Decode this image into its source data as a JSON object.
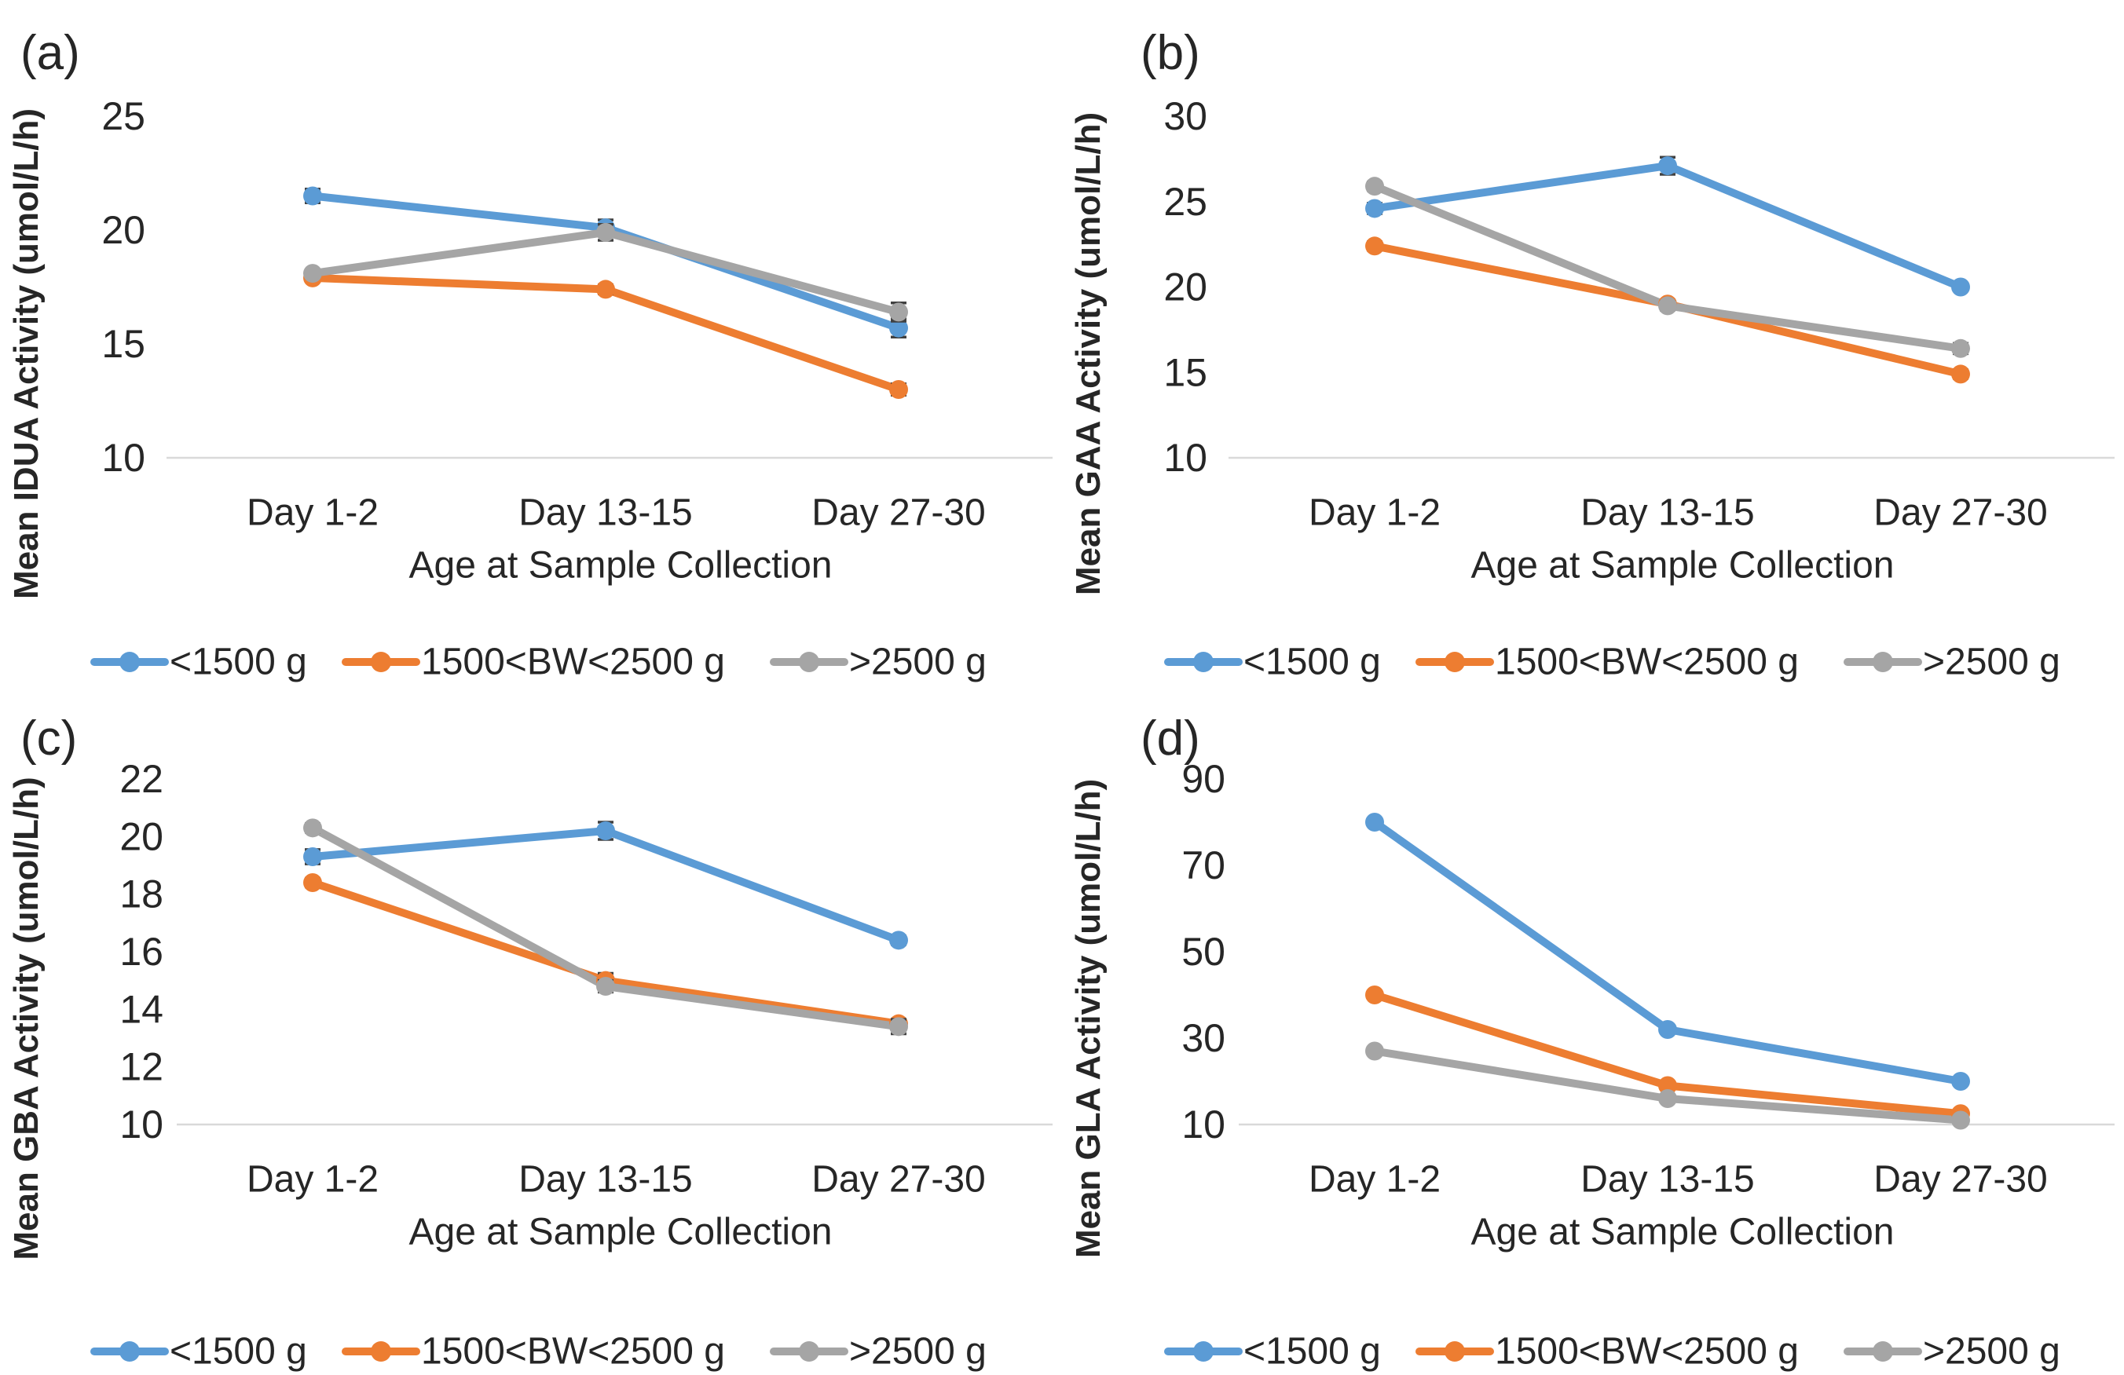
{
  "figure": {
    "background": "#ffffff",
    "x_axis_label": "Age at Sample Collection",
    "categories": [
      "Day 1-2",
      "Day 13-15",
      "Day 27-30"
    ],
    "legend": [
      {
        "label": "<1500 g",
        "color": "#5B9BD5"
      },
      {
        "label": "1500<BW<2500 g",
        "color": "#ED7D31"
      },
      {
        "label": ">2500 g",
        "color": "#A5A5A5"
      }
    ],
    "colors": {
      "series_blue": "#5B9BD5",
      "series_orange": "#ED7D31",
      "series_gray": "#A5A5A5",
      "error_bar": "#404040",
      "gridline": "#D9D9D9",
      "text": "#262626"
    }
  },
  "chart_data": [
    {
      "type": "line",
      "panel_label": "(a)",
      "ylabel": "Mean IDUA Activity (umol/L/h)",
      "xlabel": "Age at Sample Collection",
      "categories": [
        "Day 1-2",
        "Day 13-15",
        "Day 27-30"
      ],
      "yticks": [
        25,
        20,
        15,
        10
      ],
      "ylim": [
        10,
        25
      ],
      "grid": "single horizontal baseline at y=10",
      "legend_position": "bottom",
      "series": [
        {
          "name": "<1500 g",
          "color": "#5B9BD5",
          "values": [
            21.5,
            20.1,
            15.7
          ],
          "errors": [
            0.3,
            0.35,
            0.4
          ]
        },
        {
          "name": "1500<BW<2500 g",
          "color": "#ED7D31",
          "values": [
            17.9,
            17.4,
            13.0
          ],
          "errors": [
            0.15,
            0.2,
            0.25
          ]
        },
        {
          "name": ">2500 g",
          "color": "#A5A5A5",
          "values": [
            18.1,
            19.9,
            16.4
          ],
          "errors": [
            0.15,
            0.35,
            0.4
          ]
        }
      ]
    },
    {
      "type": "line",
      "panel_label": "(b)",
      "ylabel": "Mean GAA Activity (umol/L/h)",
      "xlabel": "Age at Sample Collection",
      "categories": [
        "Day 1-2",
        "Day 13-15",
        "Day 27-30"
      ],
      "yticks": [
        30,
        25,
        20,
        15,
        10
      ],
      "ylim": [
        10,
        30
      ],
      "grid": "single horizontal baseline at y=10",
      "legend_position": "bottom",
      "series": [
        {
          "name": "<1500 g",
          "color": "#5B9BD5",
          "values": [
            24.6,
            27.1,
            20.0
          ],
          "errors": [
            0.3,
            0.5,
            0.2
          ]
        },
        {
          "name": "1500<BW<2500 g",
          "color": "#ED7D31",
          "values": [
            22.4,
            19.0,
            14.9
          ],
          "errors": [
            0.25,
            0.25,
            0.25
          ]
        },
        {
          "name": ">2500 g",
          "color": "#A5A5A5",
          "values": [
            25.9,
            18.9,
            16.4
          ],
          "errors": [
            0.25,
            0.25,
            0.3
          ]
        }
      ]
    },
    {
      "type": "line",
      "panel_label": "(c)",
      "ylabel": "Mean GBA Activity (umol/L/h)",
      "xlabel": "Age at Sample Collection",
      "categories": [
        "Day 1-2",
        "Day 13-15",
        "Day 27-30"
      ],
      "yticks": [
        22,
        20,
        18,
        16,
        14,
        12,
        10
      ],
      "ylim": [
        10,
        22
      ],
      "grid": "single horizontal baseline at y=10",
      "legend_position": "bottom",
      "series": [
        {
          "name": "<1500 g",
          "color": "#5B9BD5",
          "values": [
            19.3,
            20.2,
            16.4
          ],
          "errors": [
            0.25,
            0.3,
            0.15
          ]
        },
        {
          "name": "1500<BW<2500 g",
          "color": "#ED7D31",
          "values": [
            18.4,
            15.0,
            13.5
          ],
          "errors": [
            0.15,
            0.25,
            0.15
          ]
        },
        {
          "name": ">2500 g",
          "color": "#A5A5A5",
          "values": [
            20.3,
            14.8,
            13.4
          ],
          "errors": [
            0.15,
            0.2,
            0.25
          ]
        }
      ]
    },
    {
      "type": "line",
      "panel_label": "(d)",
      "ylabel": "Mean GLA Activity (umol/L/h)",
      "xlabel": "Age at Sample Collection",
      "categories": [
        "Day 1-2",
        "Day 13-15",
        "Day 27-30"
      ],
      "yticks": [
        90,
        70,
        50,
        30,
        10
      ],
      "ylim": [
        10,
        90
      ],
      "grid": "single horizontal baseline at y=10",
      "legend_position": "bottom",
      "series": [
        {
          "name": "<1500 g",
          "color": "#5B9BD5",
          "values": [
            80,
            32,
            20
          ],
          "errors": [
            0.5,
            0.5,
            0.5
          ]
        },
        {
          "name": "1500<BW<2500 g",
          "color": "#ED7D31",
          "values": [
            40,
            19,
            12.5
          ],
          "errors": [
            0.5,
            0.5,
            0.5
          ]
        },
        {
          "name": ">2500 g",
          "color": "#A5A5A5",
          "values": [
            27,
            16,
            11
          ],
          "errors": [
            0.5,
            0.5,
            0.5
          ]
        }
      ]
    }
  ]
}
